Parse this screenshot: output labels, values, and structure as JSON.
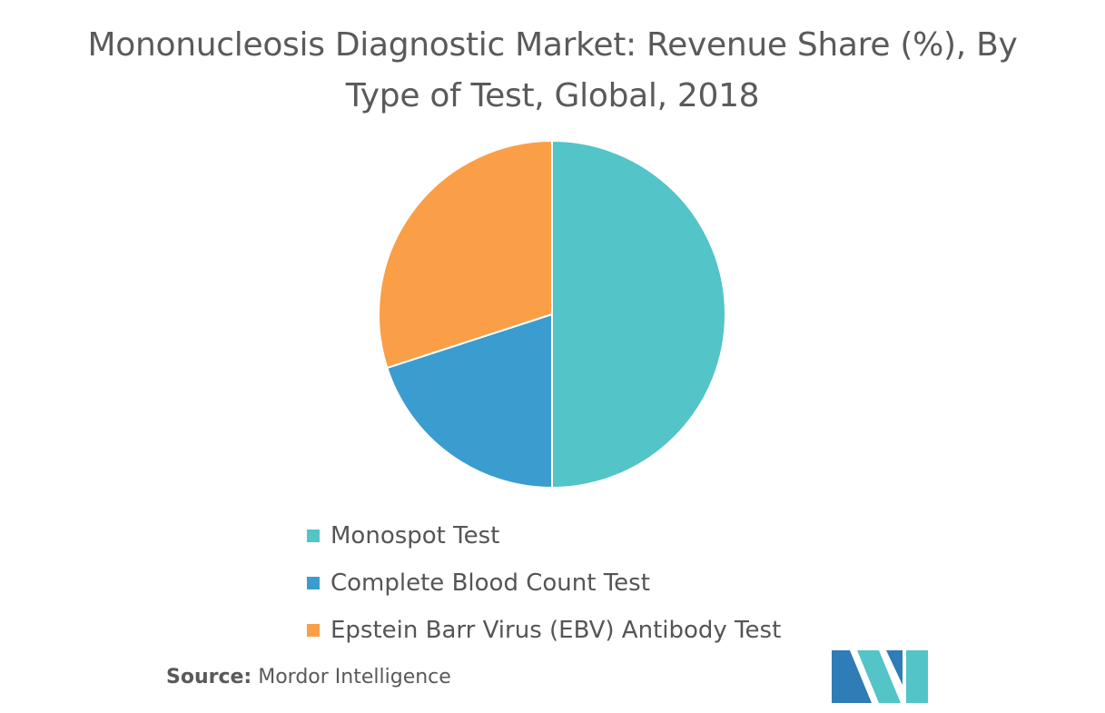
{
  "title": "Mononucleosis Diagnostic Market: Revenue Share (%), By Type of Test, Global, 2018",
  "chart_data": {
    "type": "pie",
    "categories": [
      "Monospot Test",
      "Complete Blood Count Test",
      "Epstein Barr Virus (EBV) Antibody Test"
    ],
    "values": [
      50,
      20,
      30
    ],
    "colors": [
      "#53c4c7",
      "#3b9ccf",
      "#fa9f47"
    ],
    "legend_position": "bottom"
  },
  "source": {
    "label": "Source:",
    "value": "Mordor Intelligence"
  },
  "logo": {
    "colors": [
      "#2f7cb6",
      "#53c4c7"
    ]
  }
}
